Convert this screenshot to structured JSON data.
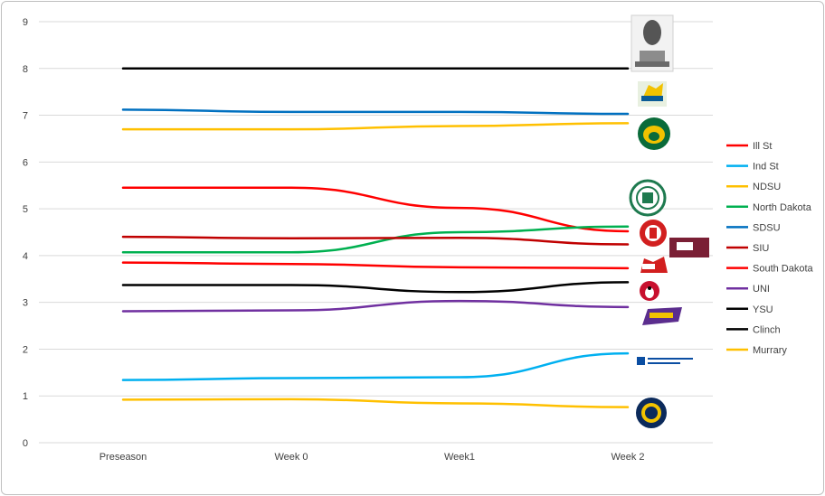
{
  "chart_data": {
    "type": "line",
    "categories": [
      "Preseason",
      "Week 0",
      "Week1",
      "Week 2"
    ],
    "ylim": [
      0,
      9
    ],
    "yticks": [
      "0",
      "1",
      "2",
      "3",
      "4",
      "5",
      "6",
      "7",
      "8",
      "9"
    ],
    "grid": true,
    "legend_position": "right",
    "series": [
      {
        "name": "Ill St",
        "color": "#ff0000",
        "values": [
          5.45,
          5.45,
          5.02,
          4.52
        ]
      },
      {
        "name": "Ind St",
        "color": "#00b0f0",
        "values": [
          1.34,
          1.38,
          1.4,
          1.91
        ]
      },
      {
        "name": "NDSU",
        "color": "#ffc000",
        "values": [
          6.7,
          6.7,
          6.77,
          6.83
        ]
      },
      {
        "name": "North Dakota",
        "color": "#00b050",
        "values": [
          4.07,
          4.07,
          4.5,
          4.62
        ]
      },
      {
        "name": "SDSU",
        "color": "#0070c0",
        "values": [
          7.12,
          7.07,
          7.07,
          7.03
        ]
      },
      {
        "name": "SIU",
        "color": "#c00000",
        "values": [
          4.4,
          4.37,
          4.38,
          4.24
        ]
      },
      {
        "name": "South Dakota",
        "color": "#ff0000",
        "values": [
          3.85,
          3.82,
          3.75,
          3.73
        ]
      },
      {
        "name": "UNI",
        "color": "#7030a0",
        "values": [
          2.81,
          2.83,
          3.03,
          2.9
        ]
      },
      {
        "name": "YSU",
        "color": "#000000",
        "values": [
          3.37,
          3.37,
          3.22,
          3.43
        ]
      },
      {
        "name": "Clinch",
        "color": "#000000",
        "values": [
          8.0,
          8.0,
          8.0,
          8.0
        ]
      },
      {
        "name": "Murrary",
        "color": "#ffc000",
        "values": [
          0.92,
          0.93,
          0.84,
          0.76
        ]
      }
    ],
    "logos": [
      {
        "team": "Clinch",
        "icon": "trophy-icon",
        "color": "#7f7f7f"
      },
      {
        "team": "SDSU",
        "icon": "jackrabbit-icon",
        "color": "#f2c200"
      },
      {
        "team": "NDSU",
        "icon": "bison-icon",
        "color": "#0a6b3a"
      },
      {
        "team": "North Dakota",
        "icon": "und-icon",
        "color": "#1e7a4f"
      },
      {
        "team": "Ill St",
        "icon": "redbird-icon",
        "color": "#d21f1f"
      },
      {
        "team": "SIU",
        "icon": "saluki-icon",
        "color": "#7a1f35"
      },
      {
        "team": "South Dakota",
        "icon": "coyote-icon",
        "color": "#d21f1f"
      },
      {
        "team": "YSU",
        "icon": "penguin-icon",
        "color": "#c8102e"
      },
      {
        "team": "UNI",
        "icon": "panther-icon",
        "color": "#5b2d8e"
      },
      {
        "team": "Ind St",
        "icon": "sycamore-icon",
        "color": "#0b4ea2"
      },
      {
        "team": "Murrary",
        "icon": "racer-icon",
        "color": "#0b2a5b"
      }
    ]
  }
}
